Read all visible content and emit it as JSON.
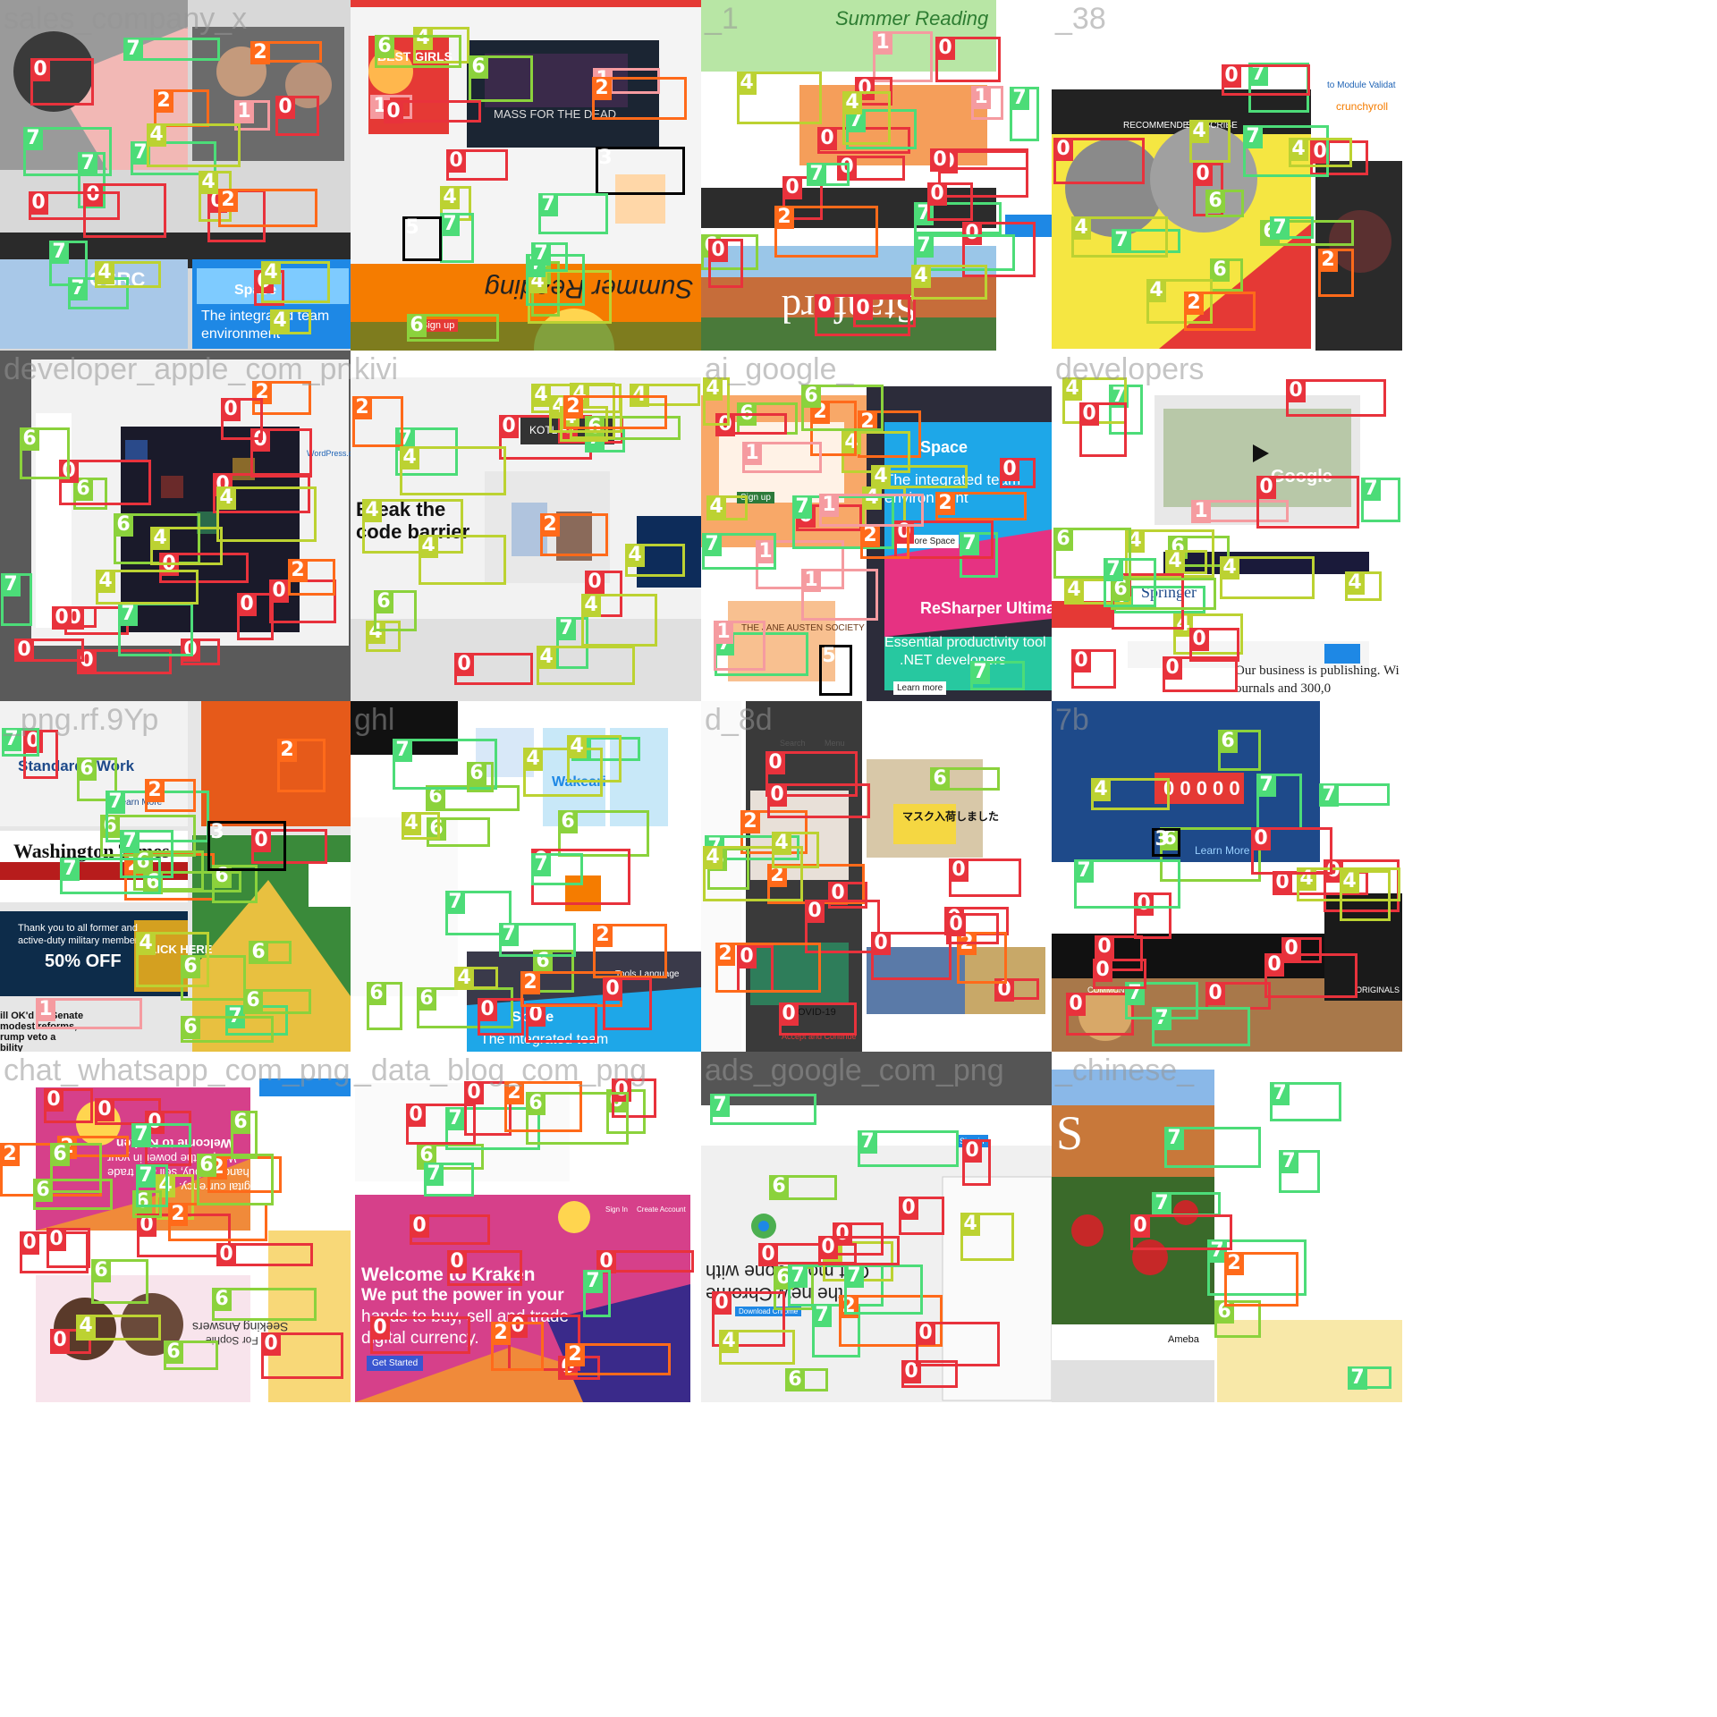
{
  "watermarks": [
    "sales_company_x",
    "",
    "_1",
    "_38",
    "developer_apple_com_png",
    "kivi",
    "ai_google_",
    "developers",
    "_png.rf.9Yp",
    "ghl",
    "d_8d",
    "7b",
    "chat_whatsapp_com_png",
    "_data_blog_com_png",
    "ads_google_com_png",
    "_chinese_"
  ],
  "tiles": [
    {
      "name": "tile-1",
      "bg": "#d8d8d8",
      "texts": [
        "CSRC",
        "The integrated team",
        "environment",
        "Space"
      ],
      "labels": [
        "7",
        "2",
        "0",
        "0",
        "0",
        "7",
        "4",
        "7",
        "7",
        "1",
        "0",
        "0",
        "7",
        "4",
        "4",
        "4",
        "4",
        "7",
        "0",
        "2",
        "2"
      ]
    },
    {
      "name": "tile-2",
      "bg": "#f4f4f4",
      "texts": [
        "BEST GIRLS",
        "MASS FOR THE DEAD",
        "Summer Reading",
        "Sign up"
      ],
      "labels": [
        "6",
        "4",
        "4",
        "4",
        "7",
        "6",
        "7",
        "0",
        "3",
        "7",
        "6",
        "6",
        "5",
        "1",
        "2",
        "1",
        "7",
        "0"
      ]
    },
    {
      "name": "tile-3",
      "bg": "#ffffff",
      "texts": [
        "Summer Reading",
        "Stanford"
      ],
      "labels": [
        "7",
        "6",
        "4",
        "1",
        "1",
        "7",
        "0",
        "0",
        "0",
        "0",
        "0",
        "0",
        "0",
        "0",
        "0",
        "7",
        "7",
        "0",
        "0",
        "0",
        "7",
        "4",
        "4",
        "2"
      ]
    },
    {
      "name": "tile-4",
      "bg": "#ffffff",
      "texts": [
        "crunchyroll",
        "RECOMMENDED",
        "SUBSCRIBE",
        "to Module Validat"
      ],
      "labels": [
        "0",
        "0",
        "7",
        "6",
        "7",
        "0",
        "2",
        "4",
        "0",
        "6",
        "4",
        "6",
        "4",
        "7",
        "4",
        "7",
        "2"
      ]
    },
    {
      "name": "tile-5",
      "bg": "#5a5a5a",
      "texts": [
        "WordPress.com"
      ],
      "labels": [
        "7",
        "2",
        "6",
        "6",
        "0",
        "0",
        "0",
        "0",
        "0",
        "0",
        "0",
        "0",
        "0",
        "0",
        "0",
        "0",
        "4",
        "4",
        "2",
        "7",
        "4",
        "6"
      ]
    },
    {
      "name": "tile-6",
      "bg": "#f2f2f2",
      "texts": [
        "Break the",
        "code barrier",
        "KOTLIN"
      ],
      "labels": [
        "7",
        "4",
        "4",
        "4",
        "7",
        "4",
        "0",
        "0",
        "0",
        "7",
        "2",
        "6",
        "6",
        "4",
        "4",
        "4",
        "4",
        "4",
        "4",
        "4",
        "2",
        "2",
        "0",
        "4"
      ]
    },
    {
      "name": "tile-7",
      "bg": "#ffffff",
      "texts": [
        "The integrated team",
        "environment",
        "Space",
        "Explore Space",
        "ReSharper Ultimate",
        "Essential productivity tool",
        ".NET developers",
        "Learn more",
        "Sign up",
        "THE JANE AUSTEN SOCIETY"
      ],
      "labels": [
        "5",
        "6",
        "1",
        "0",
        "2",
        "2",
        "7",
        "0",
        "7",
        "4",
        "4",
        "4",
        "4",
        "0",
        "0",
        "2",
        "7",
        "7",
        "2",
        "1",
        "1",
        "1",
        "1",
        "4",
        "7",
        "6"
      ]
    },
    {
      "name": "tile-8",
      "bg": "#ffffff",
      "texts": [
        "Springer",
        "Google",
        "Our business is publishing. Wi",
        "ournals and 300,0"
      ],
      "labels": [
        "7",
        "6",
        "4",
        "4",
        "4",
        "7",
        "7",
        "4",
        "4",
        "4",
        "4",
        "1",
        "0",
        "0",
        "0",
        "0",
        "0",
        "0",
        "0",
        "6",
        "6",
        "7"
      ]
    },
    {
      "name": "tile-9",
      "bg": "#e6e6e6",
      "texts": [
        "Standards Work",
        "Learn More",
        "Washington Times",
        "Thank you to all former and",
        "active-duty military members.",
        "50% OFF",
        "CLICK HERE",
        "ill OK'd by Senate",
        "modest reforms,",
        "rump veto a",
        "bility"
      ],
      "labels": [
        "0",
        "7",
        "2",
        "7",
        "6",
        "6",
        "6",
        "6",
        "6",
        "6",
        "6",
        "6",
        "6",
        "4",
        "7",
        "2",
        "0",
        "7",
        "2",
        "3",
        "1",
        "7"
      ]
    },
    {
      "name": "tile-10",
      "bg": "#ffffff",
      "texts": [
        "Wakeari",
        "The integrated team",
        "Space",
        "Tools",
        "Language"
      ],
      "labels": [
        "6",
        "6",
        "6",
        "4",
        "7",
        "6",
        "6",
        "7",
        "6",
        "4",
        "0",
        "0",
        "0",
        "2",
        "2",
        "0",
        "7",
        "7",
        "7",
        "4",
        "6",
        "4"
      ]
    },
    {
      "name": "tile-11",
      "bg": "#ffffff",
      "texts": [
        "Search",
        "Menu",
        "マスク入荷しました",
        "COVID-19",
        "Accept and Continue"
      ],
      "labels": [
        "0",
        "0",
        "0",
        "0",
        "2",
        "7",
        "6",
        "6",
        "2",
        "0",
        "0",
        "4",
        "4",
        "0",
        "0",
        "2",
        "0",
        "2",
        "0",
        "0"
      ]
    },
    {
      "name": "tile-12",
      "bg": "#ffffff",
      "texts": [
        "COMMUNITY",
        "ORIGINALS",
        "Learn More",
        "0 0 0 0 0"
      ],
      "labels": [
        "0",
        "0",
        "0",
        "0",
        "0",
        "0",
        "6",
        "7",
        "7",
        "7",
        "7",
        "6",
        "0",
        "0",
        "4",
        "4",
        "4",
        "7",
        "0",
        "0",
        "3"
      ]
    },
    {
      "name": "tile-13",
      "bg": "#ffffff",
      "texts": [
        "Welcome to Kraken",
        "We put the power in your",
        "hands to buy, sell and trade",
        "digital currency.",
        "Seeking Answers",
        "For Sophie"
      ],
      "labels": [
        "4",
        "0",
        "0",
        "0",
        "0",
        "0",
        "0",
        "2",
        "2",
        "0",
        "2",
        "2",
        "0",
        "6",
        "6",
        "6",
        "6",
        "6",
        "6",
        "0",
        "6",
        "6",
        "4",
        "7",
        "7"
      ]
    },
    {
      "name": "tile-14",
      "bg": "#ffffff",
      "texts": [
        "Welcome to Kraken",
        "We put the power in your",
        "hands to buy, sell and trade",
        "digital currency.",
        "Get Started",
        "Create Account",
        "Sign In"
      ],
      "labels": [
        "6",
        "6",
        "7",
        "0",
        "0",
        "0",
        "0",
        "0",
        "0",
        "0",
        "0",
        "6",
        "7",
        "2",
        "2",
        "2",
        "0",
        "7"
      ]
    },
    {
      "name": "tile-15",
      "bg": "#f0f0f0",
      "texts": [
        "Get more done with",
        "the new Chrome",
        "Sign in",
        "Download Chrome"
      ],
      "labels": [
        "6",
        "6",
        "7",
        "6",
        "4",
        "0",
        "0",
        "0",
        "7",
        "7",
        "4",
        "2",
        "0",
        "7",
        "7",
        "4",
        "0",
        "0",
        "0",
        "0"
      ]
    },
    {
      "name": "tile-16",
      "bg": "#ffffff",
      "texts": [
        "S",
        "Ameba"
      ],
      "labels": [
        "7",
        "7",
        "7",
        "7",
        "7",
        "7",
        "6",
        "2",
        "0"
      ]
    }
  ]
}
